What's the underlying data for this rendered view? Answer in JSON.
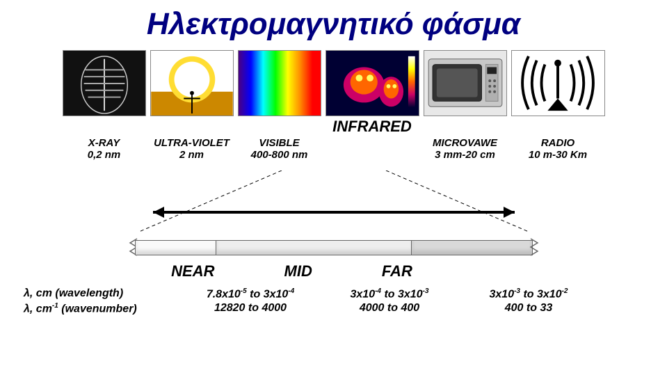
{
  "title": "Ηλεκτρομαγνητικό φάσμα",
  "infrared_label": "INFRARED",
  "spectrum": [
    {
      "name": "X-RAY",
      "range": "0,2 nm"
    },
    {
      "name": "ULTRA-VIOLET",
      "range": "2 nm"
    },
    {
      "name": "VISIBLE",
      "range": "400-800 nm"
    },
    {
      "name": "",
      "range": ""
    },
    {
      "name": "MICROVAWE",
      "range": "3 mm-20 cm"
    },
    {
      "name": "RADIO",
      "range": "10 m-30 Km"
    }
  ],
  "ir_bands": {
    "labels": [
      "NEAR",
      "MID",
      "FAR"
    ],
    "rows": [
      {
        "label_html": "λ, cm (wavelength)",
        "vals_html": [
          "7.8x10<sup>-5</sup> to 3x10<sup>-4</sup>",
          "3x10<sup>-4</sup> to 3x10<sup>-3</sup>",
          "3x10<sup>-3</sup> to 3x10<sup>-2</sup>"
        ]
      },
      {
        "label_html": "λ, cm<sup>-1</sup> (wavenumber)",
        "vals_html": [
          "12820 to 4000",
          "4000 to 400",
          "400 to 33"
        ]
      }
    ]
  },
  "styling": {
    "title_color": "#000080",
    "background": "#ffffff",
    "band_colors": [
      "#f9f9f9",
      "#eeeeee",
      "#d9d9d9"
    ],
    "arrow_color": "#000000",
    "dashed_color": "#000000",
    "rainbow_gradient": [
      "#4b0082",
      "#0000ff",
      "#00ffff",
      "#00ff00",
      "#ffff00",
      "#ff8c00",
      "#ff0000"
    ]
  }
}
